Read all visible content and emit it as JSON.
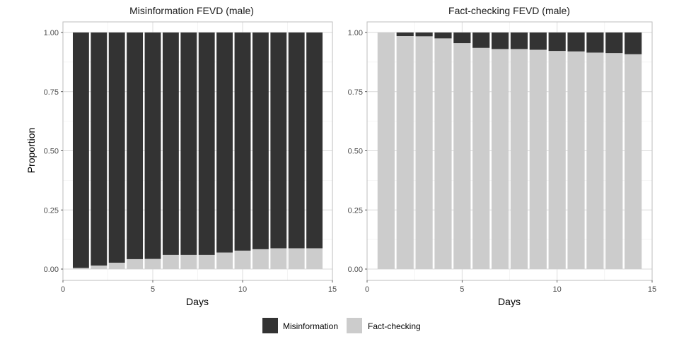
{
  "chart_data": [
    {
      "type": "bar",
      "stacked": true,
      "title": "Misinformation FEVD (male)",
      "xlabel": "Days",
      "ylabel": "Proportion",
      "xlim": [
        0,
        15
      ],
      "ylim": [
        0,
        1
      ],
      "x_ticks": [
        "0",
        "5",
        "10",
        "15"
      ],
      "y_ticks": [
        "0.00",
        "0.25",
        "0.50",
        "0.75",
        "1.00"
      ],
      "grid": true,
      "x": [
        1,
        2,
        3,
        4,
        5,
        6,
        7,
        8,
        9,
        10,
        11,
        12,
        13,
        14
      ],
      "series": [
        {
          "name": "Fact-checking",
          "color": "#cccccc",
          "values": [
            0.005,
            0.015,
            0.027,
            0.042,
            0.043,
            0.06,
            0.06,
            0.06,
            0.07,
            0.078,
            0.084,
            0.088,
            0.088,
            0.088
          ]
        },
        {
          "name": "Misinformation",
          "color": "#333333",
          "values": [
            0.995,
            0.985,
            0.973,
            0.958,
            0.957,
            0.94,
            0.94,
            0.94,
            0.93,
            0.922,
            0.916,
            0.912,
            0.912,
            0.912
          ]
        }
      ]
    },
    {
      "type": "bar",
      "stacked": true,
      "title": "Fact-checking FEVD (male)",
      "xlabel": "Days",
      "ylabel": "",
      "xlim": [
        0,
        15
      ],
      "ylim": [
        0,
        1
      ],
      "x_ticks": [
        "0",
        "5",
        "10",
        "15"
      ],
      "y_ticks": [
        "0.00",
        "0.25",
        "0.50",
        "0.75",
        "1.00"
      ],
      "grid": true,
      "x": [
        1,
        2,
        3,
        4,
        5,
        6,
        7,
        8,
        9,
        10,
        11,
        12,
        13,
        14
      ],
      "series": [
        {
          "name": "Fact-checking",
          "color": "#cccccc",
          "values": [
            1.0,
            0.985,
            0.984,
            0.975,
            0.955,
            0.935,
            0.93,
            0.93,
            0.927,
            0.922,
            0.92,
            0.915,
            0.913,
            0.908
          ]
        },
        {
          "name": "Misinformation",
          "color": "#333333",
          "values": [
            0.0,
            0.015,
            0.016,
            0.025,
            0.045,
            0.065,
            0.07,
            0.07,
            0.073,
            0.078,
            0.08,
            0.085,
            0.087,
            0.092
          ]
        }
      ]
    }
  ],
  "legend": {
    "position": "bottom",
    "items": [
      {
        "label": "Misinformation",
        "color": "#333333"
      },
      {
        "label": "Fact-checking",
        "color": "#cccccc"
      }
    ]
  }
}
